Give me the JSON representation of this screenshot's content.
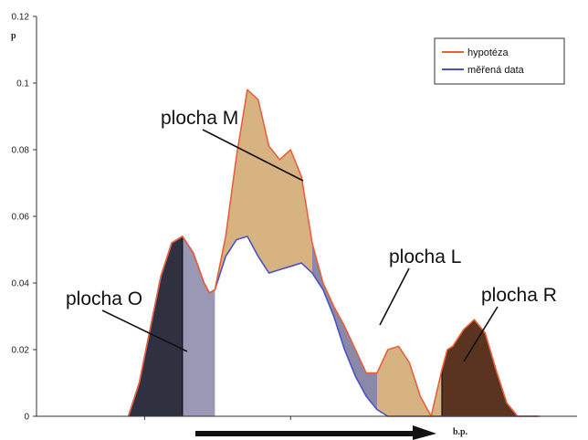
{
  "chart_data": {
    "type": "area",
    "ylabel": "p",
    "xlabel": "b.p.",
    "ylim": [
      0,
      0.12
    ],
    "yticks": [
      "0",
      "0.02",
      "0.04",
      "0.06",
      "0.08",
      "0.1",
      "0.12"
    ],
    "x_range": [
      0,
      100
    ],
    "series": [
      {
        "name": "hypotéza",
        "color": "#e8603a",
        "x": [
          17,
          19,
          21,
          23,
          25,
          27,
          29,
          31,
          32,
          33,
          35,
          37,
          39,
          41,
          43,
          45,
          47,
          49,
          51,
          53,
          55,
          57,
          59,
          61,
          63,
          65,
          67,
          69,
          71,
          73,
          75,
          76,
          77,
          79,
          81,
          83,
          85,
          87,
          89,
          91,
          93
        ],
        "values": [
          0,
          0.01,
          0.026,
          0.042,
          0.052,
          0.054,
          0.049,
          0.04,
          0.037,
          0.038,
          0.054,
          0.078,
          0.098,
          0.095,
          0.081,
          0.077,
          0.08,
          0.072,
          0.052,
          0.04,
          0.033,
          0.027,
          0.02,
          0.013,
          0.013,
          0.02,
          0.021,
          0.016,
          0.006,
          0,
          0.014,
          0.02,
          0.021,
          0.026,
          0.029,
          0.025,
          0.014,
          0.004,
          0,
          0,
          0
        ]
      },
      {
        "name": "měřená data",
        "color": "#4a52c4",
        "x": [
          17,
          19,
          21,
          23,
          25,
          27,
          29,
          31,
          32,
          33,
          35,
          37,
          39,
          41,
          43,
          45,
          47,
          49,
          51,
          53,
          55,
          57,
          59,
          61,
          63,
          65,
          67,
          69,
          71,
          73,
          75,
          76,
          77,
          79,
          81,
          83,
          85,
          87,
          89,
          91,
          93
        ],
        "values": [
          0,
          0.01,
          0.026,
          0.042,
          0.052,
          0.054,
          0.049,
          0.04,
          0.037,
          0.038,
          0.048,
          0.053,
          0.054,
          0.048,
          0.043,
          0.044,
          0.045,
          0.046,
          0.043,
          0.038,
          0.03,
          0.02,
          0.012,
          0.006,
          0.002,
          0,
          0,
          0,
          0,
          0,
          0,
          0,
          0,
          0,
          0,
          0,
          0,
          0,
          0,
          0,
          0
        ]
      }
    ],
    "legend": {
      "position": "top-right",
      "entries": [
        "hypotéza",
        "měřená data"
      ]
    },
    "regions": [
      {
        "label": "plocha O",
        "x_from": 17,
        "x_to": 27,
        "fill": "#2f3040"
      },
      {
        "label": "plocha M",
        "x_from": 33,
        "x_to": 51,
        "fill": "#d8b382"
      },
      {
        "label": "plocha L",
        "x_from": 51,
        "x_to": 63,
        "fill": "#8a8aa8"
      },
      {
        "label": "plocha R",
        "x_from": 75,
        "x_to": 89,
        "fill": "#5a3420"
      }
    ],
    "grid": false
  }
}
